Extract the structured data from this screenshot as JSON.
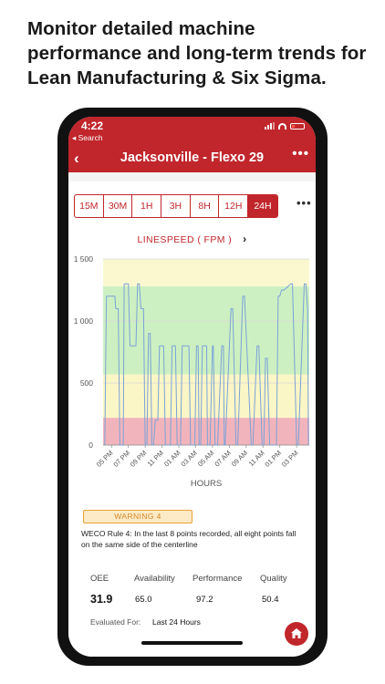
{
  "headline": "Monitor detailed machine performance and long-term trends for Lean Manufacturing & Six Sigma.",
  "status": {
    "time": "4:22",
    "back_label": "◂ Search"
  },
  "nav": {
    "title": "Jacksonville - Flexo 29",
    "back_icon": "‹",
    "more_icon": "•••"
  },
  "ranges": {
    "items": [
      "15M",
      "30M",
      "1H",
      "3H",
      "8H",
      "12H",
      "24H"
    ],
    "selected": "24H",
    "more_icon": "•••"
  },
  "metric": {
    "label": "LINESPEED ( FPM )",
    "chevron": "›"
  },
  "chart_data": {
    "type": "line",
    "title": "LINESPEED ( FPM )",
    "xlabel": "HOURS",
    "ylabel": "",
    "ylim": [
      0,
      1500
    ],
    "yticks": [
      0,
      500,
      1000,
      1500
    ],
    "ytick_labels": [
      "0",
      "500",
      "1 000",
      "1 500"
    ],
    "xlim": [
      16,
      40.5
    ],
    "xticks": [
      17,
      19,
      21,
      23,
      25,
      27,
      29,
      31,
      33,
      35,
      37,
      39
    ],
    "xtick_labels": [
      "05 PM",
      "07 PM",
      "09 PM",
      "11 PM",
      "01 AM",
      "03 AM",
      "05 AM",
      "07 AM",
      "09 AM",
      "11 AM",
      "01 PM",
      "03 PM"
    ],
    "bands": [
      {
        "from": 0,
        "to": 220,
        "color": "#f2b4bc"
      },
      {
        "from": 220,
        "to": 570,
        "color": "#fbf6c6"
      },
      {
        "from": 570,
        "to": 1280,
        "color": "#cdf0c2"
      },
      {
        "from": 1280,
        "to": 1500,
        "color": "#fbf8cf"
      }
    ],
    "grid": true,
    "series": [
      {
        "color": "#7aa2d8",
        "x": [
          16.2,
          16.4,
          17.4,
          17.5,
          17.8,
          18.0,
          18.4,
          18.5,
          19.0,
          19.2,
          19.9,
          20.1,
          20.3,
          20.5,
          20.8,
          21.0,
          21.2,
          21.4,
          21.6,
          21.8,
          22.0,
          22.2,
          22.5,
          22.7,
          23.2,
          23.4,
          24.0,
          24.2,
          24.6,
          24.8,
          25.2,
          25.4,
          26.2,
          26.4,
          26.9,
          27.1,
          27.3,
          27.4,
          27.6,
          27.8,
          28.3,
          28.4,
          28.7,
          29.0,
          29.1,
          29.3,
          29.6,
          30.1,
          30.3,
          30.4,
          30.5,
          31.2,
          31.4,
          31.8,
          32.0,
          32.6,
          32.8,
          33.6,
          33.8,
          34.3,
          34.5,
          34.9,
          35.1,
          35.3,
          35.5,
          35.8,
          36.6,
          36.8,
          37.0,
          37.2,
          37.5,
          38.3,
          38.5,
          39.0,
          39.2,
          39.9,
          40.1,
          40.3,
          40.4
        ],
        "y": [
          0,
          1200,
          1200,
          1100,
          1100,
          0,
          0,
          1300,
          1300,
          800,
          800,
          1300,
          1300,
          1100,
          1100,
          0,
          0,
          900,
          900,
          0,
          0,
          200,
          200,
          800,
          800,
          0,
          0,
          800,
          800,
          0,
          0,
          800,
          800,
          0,
          0,
          800,
          800,
          0,
          0,
          800,
          800,
          0,
          0,
          800,
          800,
          0,
          0,
          800,
          800,
          0,
          0,
          1100,
          1100,
          0,
          0,
          1200,
          1200,
          0,
          0,
          800,
          800,
          0,
          0,
          700,
          700,
          0,
          0,
          1200,
          1200,
          1250,
          1250,
          1300,
          1300,
          0,
          0,
          1300,
          1300,
          1100,
          0
        ]
      }
    ]
  },
  "warning": {
    "label": "WARNING 4",
    "text": "WECO Rule 4: In the last 8 points recorded, all eight points fall on the same side of the centerline"
  },
  "kpis": [
    {
      "label": "OEE",
      "value": "31.9"
    },
    {
      "label": "Availability",
      "value": "65.0"
    },
    {
      "label": "Performance",
      "value": "97.2"
    },
    {
      "label": "Quality",
      "value": "50.4"
    }
  ],
  "evaluated": {
    "label": "Evaluated For:",
    "value": "Last 24 Hours"
  },
  "colors": {
    "brand": "#c0262b",
    "warning": "#e8a23a",
    "line": "#7aa2d8"
  },
  "icons": {
    "home": "home-icon"
  }
}
